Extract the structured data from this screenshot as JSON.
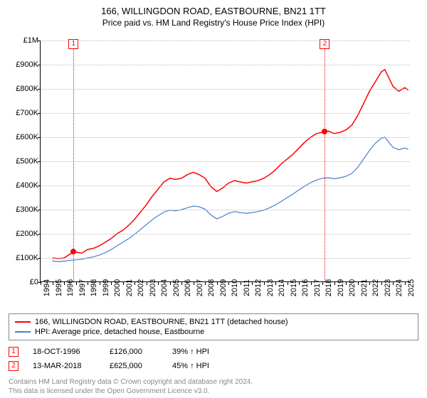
{
  "title": "166, WILLINGDON ROAD, EASTBOURNE, BN21 1TT",
  "subtitle": "Price paid vs. HM Land Registry's House Price Index (HPI)",
  "chart": {
    "type": "line",
    "background_color": "#ffffff",
    "grid_color": "#bbbbbb",
    "ylim": [
      0,
      1000000
    ],
    "ytick_step": 100000,
    "ylabels": [
      "£0",
      "£100K",
      "£200K",
      "£300K",
      "£400K",
      "£500K",
      "£600K",
      "£700K",
      "£800K",
      "£900K",
      "£1M"
    ],
    "xlim": [
      1994,
      2025.5
    ],
    "xtick_years": [
      1994,
      1995,
      1996,
      1997,
      1998,
      1999,
      2000,
      2001,
      2002,
      2003,
      2004,
      2005,
      2006,
      2007,
      2008,
      2009,
      2010,
      2011,
      2012,
      2013,
      2014,
      2015,
      2016,
      2017,
      2018,
      2019,
      2020,
      2021,
      2022,
      2023,
      2024,
      2025
    ],
    "series": [
      {
        "name": "166, WILLINGDON ROAD, EASTBOURNE, BN21 1TT (detached house)",
        "color": "#ff0000",
        "line_width": 1.5,
        "data": [
          [
            1995.0,
            100000
          ],
          [
            1995.5,
            98000
          ],
          [
            1996.0,
            100000
          ],
          [
            1996.8,
            126000
          ],
          [
            1997.5,
            120000
          ],
          [
            1998.0,
            135000
          ],
          [
            1998.5,
            140000
          ],
          [
            1999.0,
            150000
          ],
          [
            1999.5,
            165000
          ],
          [
            2000.0,
            180000
          ],
          [
            2000.5,
            200000
          ],
          [
            2001.0,
            215000
          ],
          [
            2001.5,
            235000
          ],
          [
            2002.0,
            260000
          ],
          [
            2002.5,
            290000
          ],
          [
            2003.0,
            320000
          ],
          [
            2003.5,
            355000
          ],
          [
            2004.0,
            385000
          ],
          [
            2004.5,
            415000
          ],
          [
            2005.0,
            430000
          ],
          [
            2005.5,
            425000
          ],
          [
            2006.0,
            430000
          ],
          [
            2006.5,
            445000
          ],
          [
            2007.0,
            455000
          ],
          [
            2007.5,
            445000
          ],
          [
            2008.0,
            430000
          ],
          [
            2008.5,
            395000
          ],
          [
            2009.0,
            375000
          ],
          [
            2009.5,
            390000
          ],
          [
            2010.0,
            410000
          ],
          [
            2010.5,
            420000
          ],
          [
            2011.0,
            415000
          ],
          [
            2011.5,
            410000
          ],
          [
            2012.0,
            415000
          ],
          [
            2012.5,
            420000
          ],
          [
            2013.0,
            430000
          ],
          [
            2013.5,
            445000
          ],
          [
            2014.0,
            465000
          ],
          [
            2014.5,
            490000
          ],
          [
            2015.0,
            510000
          ],
          [
            2015.5,
            530000
          ],
          [
            2016.0,
            555000
          ],
          [
            2016.5,
            580000
          ],
          [
            2017.0,
            600000
          ],
          [
            2017.5,
            615000
          ],
          [
            2018.0,
            620000
          ],
          [
            2018.2,
            625000
          ],
          [
            2018.5,
            625000
          ],
          [
            2019.0,
            615000
          ],
          [
            2019.5,
            620000
          ],
          [
            2020.0,
            630000
          ],
          [
            2020.5,
            650000
          ],
          [
            2021.0,
            690000
          ],
          [
            2021.5,
            740000
          ],
          [
            2022.0,
            790000
          ],
          [
            2022.5,
            830000
          ],
          [
            2023.0,
            870000
          ],
          [
            2023.3,
            880000
          ],
          [
            2023.7,
            840000
          ],
          [
            2024.0,
            810000
          ],
          [
            2024.5,
            790000
          ],
          [
            2025.0,
            805000
          ],
          [
            2025.3,
            795000
          ]
        ]
      },
      {
        "name": "HPI: Average price, detached house, Eastbourne",
        "color": "#4a7fc9",
        "line_width": 1.2,
        "data": [
          [
            1995.0,
            88000
          ],
          [
            1995.5,
            85000
          ],
          [
            1996.0,
            87000
          ],
          [
            1996.5,
            90000
          ],
          [
            1997.0,
            92000
          ],
          [
            1997.5,
            95000
          ],
          [
            1998.0,
            100000
          ],
          [
            1998.5,
            105000
          ],
          [
            1999.0,
            112000
          ],
          [
            1999.5,
            122000
          ],
          [
            2000.0,
            135000
          ],
          [
            2000.5,
            150000
          ],
          [
            2001.0,
            165000
          ],
          [
            2001.5,
            180000
          ],
          [
            2002.0,
            198000
          ],
          [
            2002.5,
            218000
          ],
          [
            2003.0,
            238000
          ],
          [
            2003.5,
            258000
          ],
          [
            2004.0,
            275000
          ],
          [
            2004.5,
            290000
          ],
          [
            2005.0,
            298000
          ],
          [
            2005.5,
            295000
          ],
          [
            2006.0,
            300000
          ],
          [
            2006.5,
            308000
          ],
          [
            2007.0,
            315000
          ],
          [
            2007.5,
            312000
          ],
          [
            2008.0,
            302000
          ],
          [
            2008.5,
            278000
          ],
          [
            2009.0,
            262000
          ],
          [
            2009.5,
            272000
          ],
          [
            2010.0,
            285000
          ],
          [
            2010.5,
            292000
          ],
          [
            2011.0,
            288000
          ],
          [
            2011.5,
            285000
          ],
          [
            2012.0,
            288000
          ],
          [
            2012.5,
            292000
          ],
          [
            2013.0,
            298000
          ],
          [
            2013.5,
            308000
          ],
          [
            2014.0,
            320000
          ],
          [
            2014.5,
            335000
          ],
          [
            2015.0,
            350000
          ],
          [
            2015.5,
            365000
          ],
          [
            2016.0,
            382000
          ],
          [
            2016.5,
            398000
          ],
          [
            2017.0,
            412000
          ],
          [
            2017.5,
            423000
          ],
          [
            2018.0,
            430000
          ],
          [
            2018.5,
            432000
          ],
          [
            2019.0,
            428000
          ],
          [
            2019.5,
            432000
          ],
          [
            2020.0,
            438000
          ],
          [
            2020.5,
            450000
          ],
          [
            2021.0,
            475000
          ],
          [
            2021.5,
            510000
          ],
          [
            2022.0,
            545000
          ],
          [
            2022.5,
            575000
          ],
          [
            2023.0,
            595000
          ],
          [
            2023.3,
            600000
          ],
          [
            2023.7,
            575000
          ],
          [
            2024.0,
            558000
          ],
          [
            2024.5,
            548000
          ],
          [
            2025.0,
            555000
          ],
          [
            2025.3,
            550000
          ]
        ]
      }
    ],
    "transactions": [
      {
        "n": "1",
        "year": 1996.8,
        "price": 126000,
        "marker_color": "#ff0000"
      },
      {
        "n": "2",
        "year": 2018.2,
        "price": 625000,
        "marker_color": "#ff0000"
      }
    ]
  },
  "legend": {
    "items": [
      {
        "label": "166, WILLINGDON ROAD, EASTBOURNE, BN21 1TT (detached house)",
        "color": "#ff0000"
      },
      {
        "label": "HPI: Average price, detached house, Eastbourne",
        "color": "#4a7fc9"
      }
    ]
  },
  "transactions_table": [
    {
      "n": "1",
      "date": "18-OCT-1996",
      "price": "£126,000",
      "hpi": "39% ↑ HPI"
    },
    {
      "n": "2",
      "date": "13-MAR-2018",
      "price": "£625,000",
      "hpi": "45% ↑ HPI"
    }
  ],
  "footer": {
    "line1": "Contains HM Land Registry data © Crown copyright and database right 2024.",
    "line2": "This data is licensed under the Open Government Licence v3.0."
  }
}
